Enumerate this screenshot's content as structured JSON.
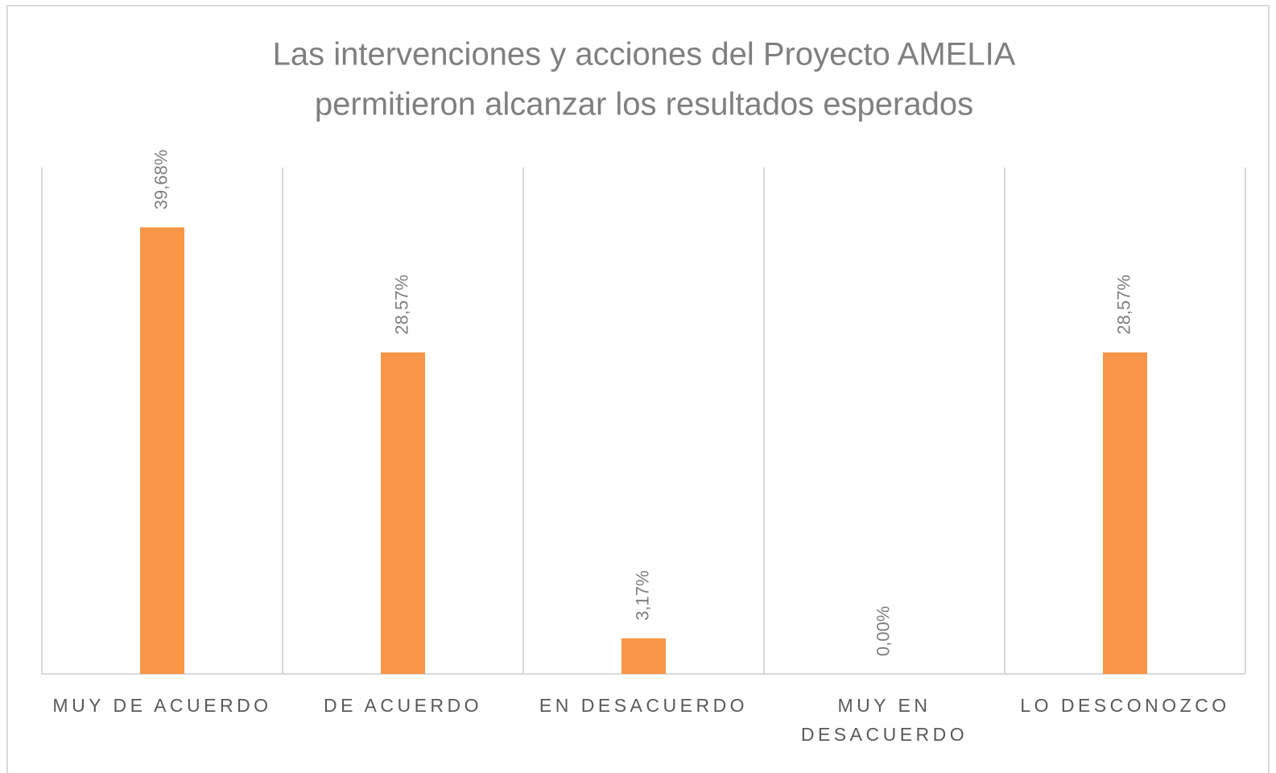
{
  "chart_data": {
    "type": "bar",
    "title": [
      "Las intervenciones y acciones del Proyecto AMELIA",
      "permitieron alcanzar los resultados esperados"
    ],
    "categories": [
      "MUY DE ACUERDO",
      "DE ACUERDO",
      "EN DESACUERDO",
      "MUY EN DESACUERDO",
      "LO DESCONOZCO"
    ],
    "values": [
      39.68,
      28.57,
      3.17,
      0,
      28.57
    ],
    "value_labels": [
      "39,68%",
      "28,57%",
      "3,17%",
      "0,00%",
      "28,57%"
    ],
    "color": "#f79646",
    "ylim": [
      0,
      45
    ]
  }
}
